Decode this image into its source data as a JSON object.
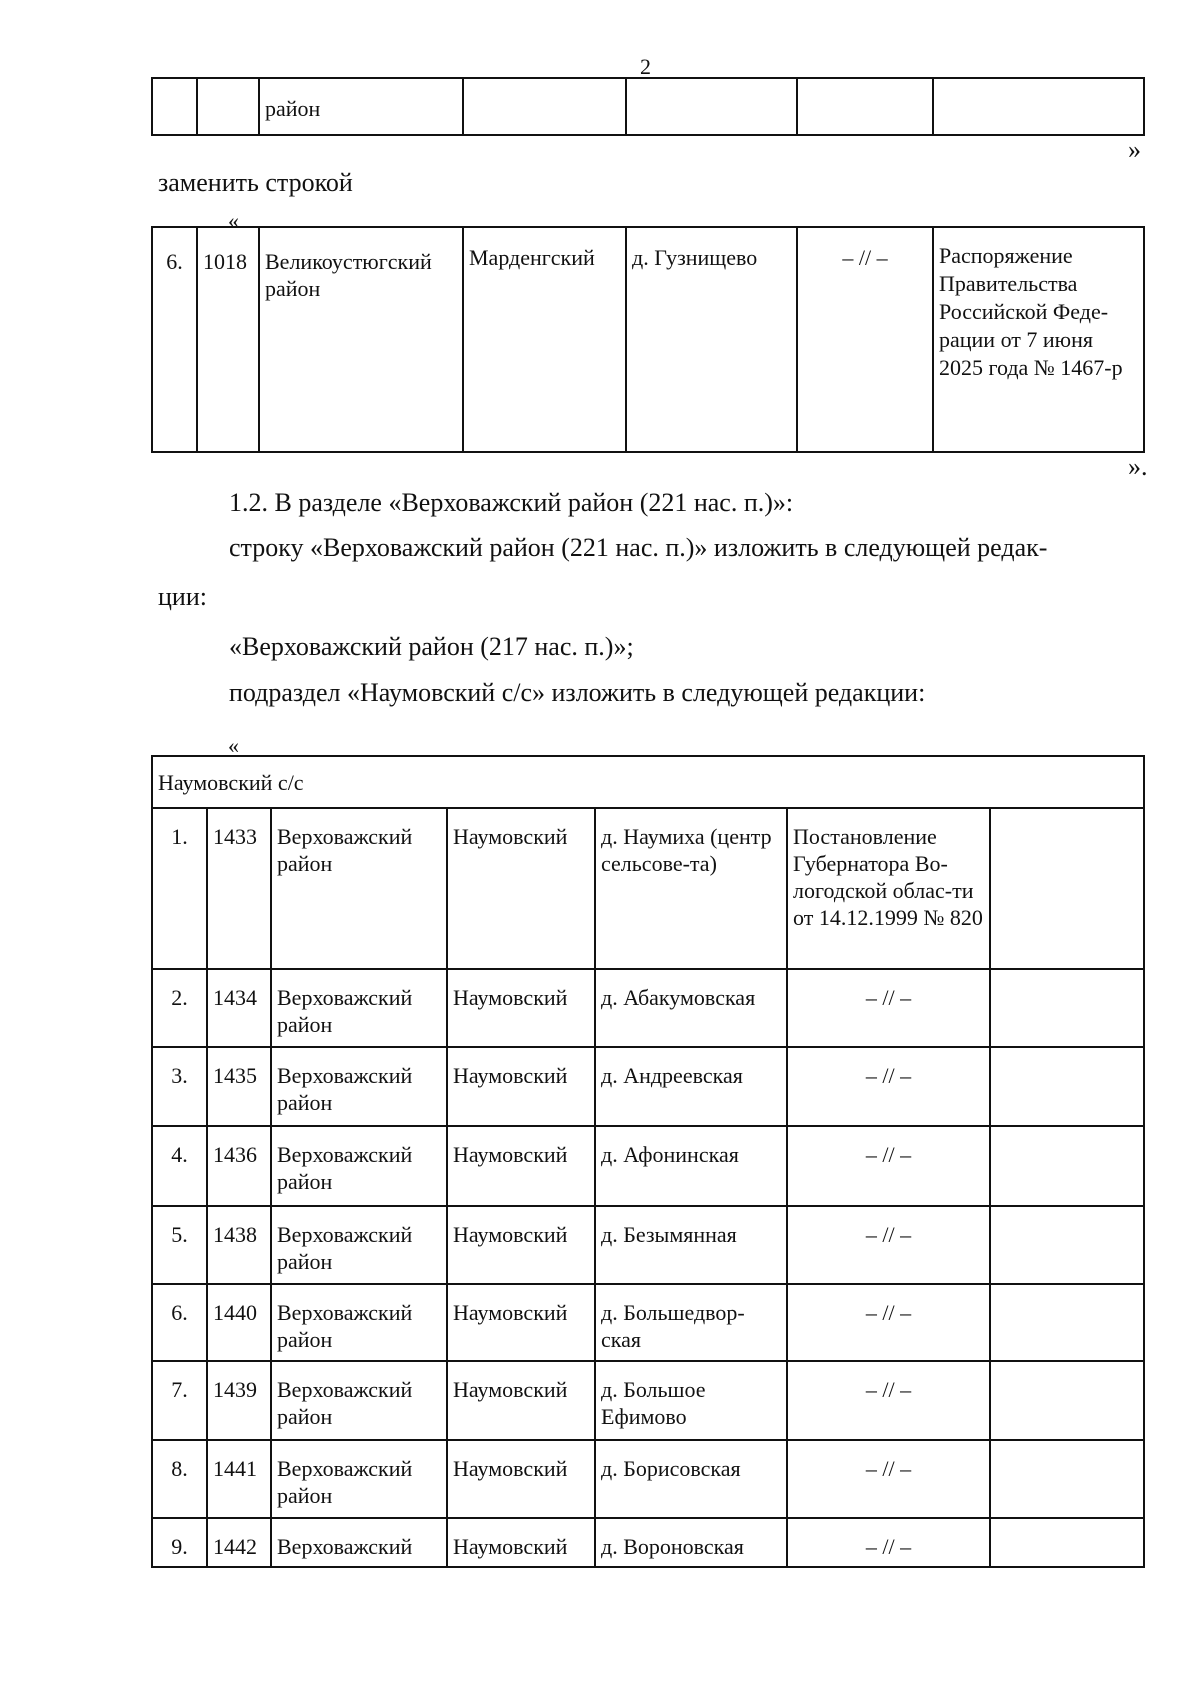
{
  "page_number": "2",
  "prev_table": {
    "row": [
      "",
      "",
      "район",
      "",
      "",
      "",
      ""
    ]
  },
  "close_quote_1": "»",
  "replace_text": "заменить строкой",
  "open_quote_1": "«",
  "replacement_row": [
    "6.",
    "1018",
    "Великоустюгский район",
    "Марденгский",
    "д. Гузнищево",
    "– // –",
    "Распоряжение Правительства Российской Феде-рации от 7 июня 2025 года № 1467-р"
  ],
  "close_quote_2": "».",
  "paragraphs": [
    "1.2. В разделе «Верховажский район (221 нас. п.)»:",
    "строку «Верховажский район (221 нас. п.)» изложить в следующей редак-",
    "ции:",
    "«Верховажский район (217 нас. п.)»;",
    "подраздел «Наумовский с/с» изложить в следующей редакции:"
  ],
  "open_quote_2": "«",
  "subsection_table": {
    "title": "Наумовский с/с",
    "rows": [
      [
        "1.",
        "1433",
        "Верховажский район",
        "Наумовский",
        "д. Наумиха (центр сельсове-та)",
        "Постановление Губернатора Во-логодской облас-ти от 14.12.1999 № 820",
        ""
      ],
      [
        "2.",
        "1434",
        "Верховажский район",
        "Наумовский",
        "д. Абакумовская",
        "– // –",
        ""
      ],
      [
        "3.",
        "1435",
        "Верховажский район",
        "Наумовский",
        "д. Андреевская",
        "– // –",
        ""
      ],
      [
        "4.",
        "1436",
        "Верховажский район",
        "Наумовский",
        "д. Афонинская",
        "– // –",
        ""
      ],
      [
        "5.",
        "1438",
        "Верховажский район",
        "Наумовский",
        "д. Безымянная",
        "– // –",
        ""
      ],
      [
        "6.",
        "1440",
        "Верховажский район",
        "Наумовский",
        "д. Большедвор-ская",
        "– // –",
        ""
      ],
      [
        "7.",
        "1439",
        "Верховажский район",
        "Наумовский",
        "д. Большое Ефимово",
        "– // –",
        ""
      ],
      [
        "8.",
        "1441",
        "Верховажский район",
        "Наумовский",
        "д. Борисовская",
        "– // –",
        ""
      ],
      [
        "9.",
        "1442",
        "Верховажский",
        "Наумовский",
        "д. Вороновская",
        "– // –",
        ""
      ]
    ]
  }
}
